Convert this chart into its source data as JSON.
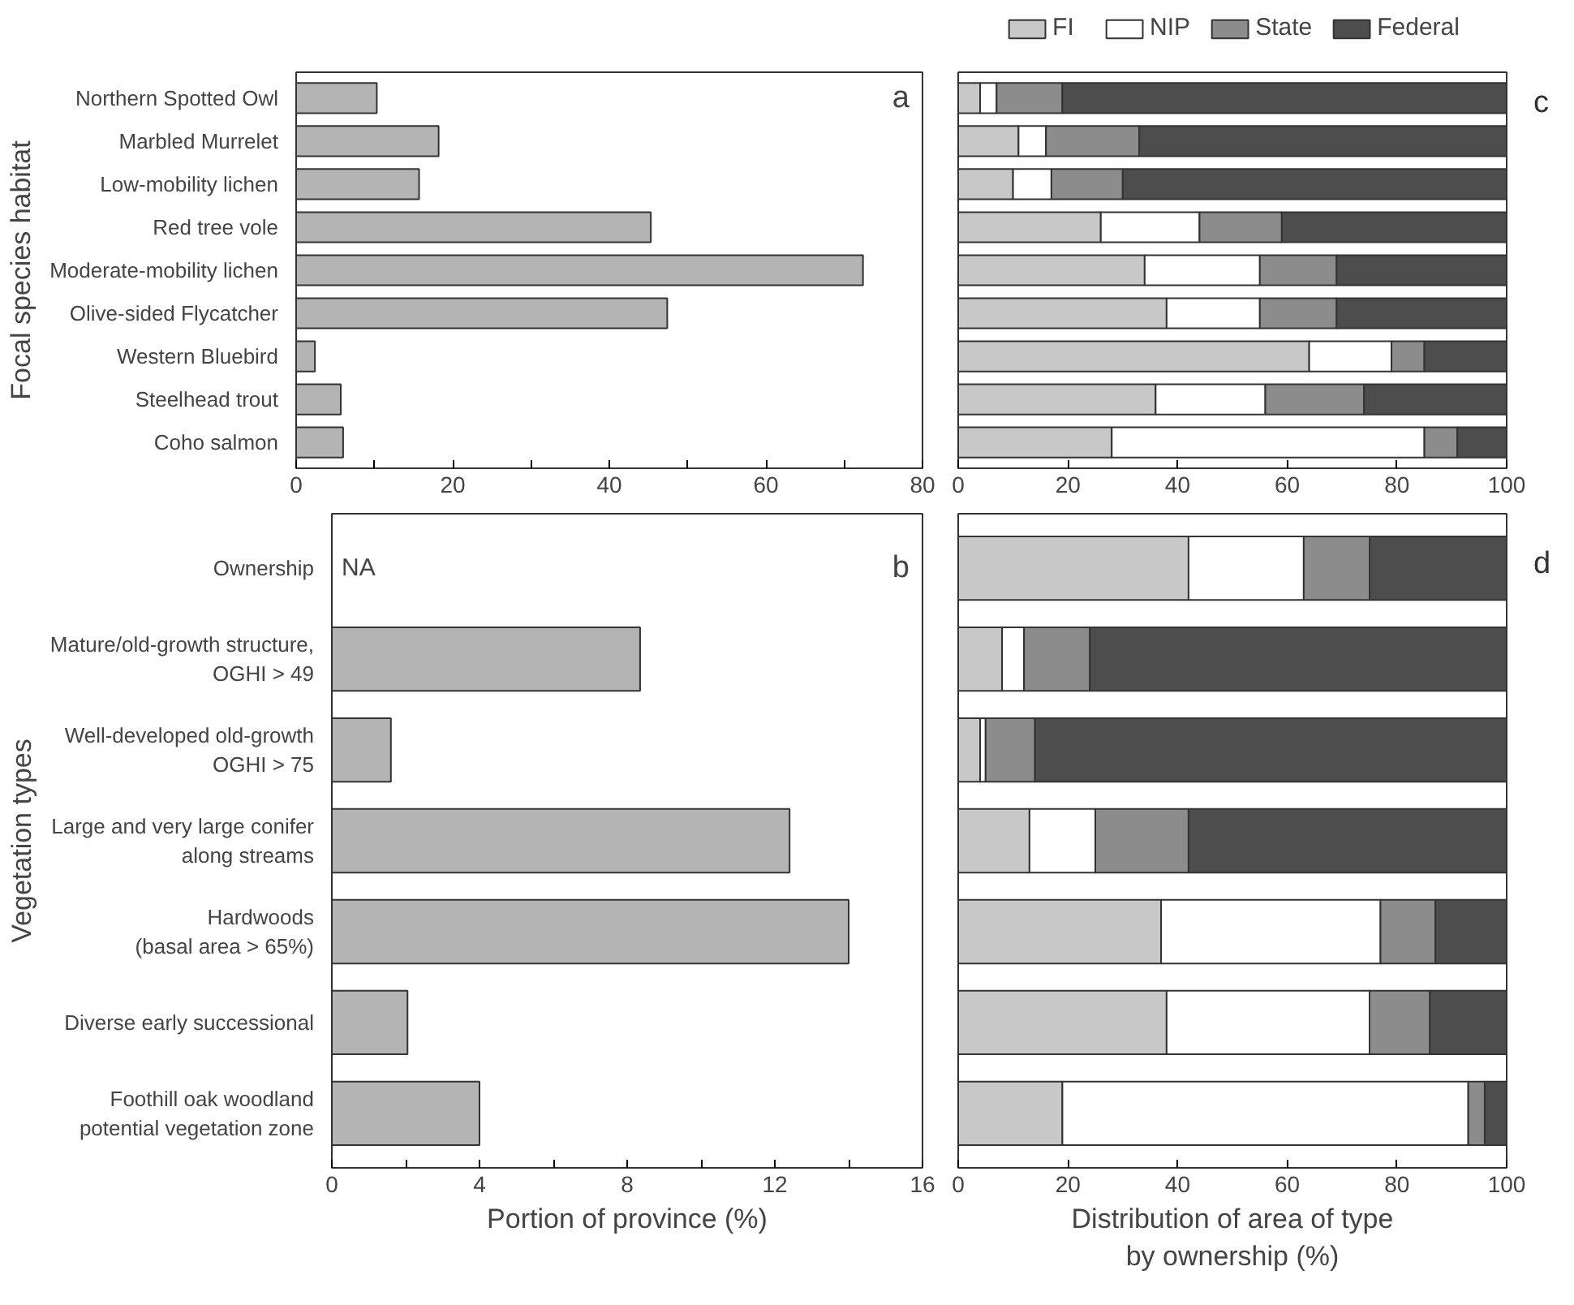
{
  "chart_data": [
    {
      "type": "bar",
      "orientation": "horizontal",
      "ylabel": "Focal species habitat",
      "categories": [
        "Northern Spotted Owl",
        "Marbled Murrelet",
        "Low-mobility lichen",
        "Red tree vole",
        "Moderate-mobility lichen",
        "Olive-sided Flycatcher",
        "Western Bluebird",
        "Steelhead trout",
        "Coho salmon"
      ],
      "series": [
        {
          "color": "#b4b4b4",
          "values": [
            10.3,
            18.2,
            15.7,
            45.3,
            72.4,
            47.4,
            2.4,
            5.7,
            6.0
          ]
        }
      ],
      "xlim": [
        0,
        80
      ],
      "xticks": [
        0,
        {
          "value": 10,
          "label": null
        },
        20,
        {
          "value": 30,
          "label": null
        },
        40,
        {
          "value": 50,
          "label": null
        },
        60,
        {
          "value": 70,
          "label": null
        },
        80
      ],
      "annotations": [
        "a"
      ]
    },
    {
      "type": "bar",
      "orientation": "horizontal",
      "stacked": true,
      "categories": [
        "Northern Spotted Owl",
        "Marbled Murrelet",
        "Low-mobility lichen",
        "Red tree vole",
        "Moderate-mobility lichen",
        "Olive-sided Flycatcher",
        "Western Bluebird",
        "Steelhead trout",
        "Coho salmon"
      ],
      "series": [
        {
          "name": "FI",
          "color": "#c8c8c8",
          "values": [
            4,
            11,
            10,
            26,
            34,
            38,
            64,
            36,
            28
          ]
        },
        {
          "name": "NIP",
          "color": "#ffffff",
          "values": [
            3,
            5,
            7,
            18,
            21,
            17,
            15,
            20,
            57
          ]
        },
        {
          "name": "State",
          "color": "#8c8c8c",
          "values": [
            12,
            17,
            13,
            15,
            14,
            14,
            6,
            18,
            6
          ]
        },
        {
          "name": "Federal",
          "color": "#4d4d4d",
          "values": [
            81,
            67,
            70,
            41,
            31,
            31,
            15,
            26,
            9
          ]
        }
      ],
      "xlim": [
        0,
        100
      ],
      "xticks": [
        0,
        20,
        40,
        60,
        80,
        100
      ],
      "tick_labels": "x",
      "legend": "top",
      "annotations": [
        "c"
      ]
    },
    {
      "type": "bar",
      "orientation": "horizontal",
      "ylabel": "Vegetation types",
      "xlabel": "Portion of province (%)",
      "categories": [
        "Ownership",
        "Mature/old-growth structure,\nOGHI > 49",
        "Well-developed old-growth\nOGHI > 75",
        "Large and very large conifer\nalong streams",
        "Hardwoods\n(basal area > 65%)",
        "Diverse early successional",
        "Foothill oak woodland\npotential vegetation zone"
      ],
      "series": [
        {
          "color": "#b4b4b4",
          "values": [
            null,
            8.35,
            1.6,
            12.4,
            14.0,
            2.05,
            4.0
          ]
        }
      ],
      "xlim": [
        0,
        16
      ],
      "xticks": [
        0,
        {
          "value": 2,
          "label": null
        },
        4,
        {
          "value": 6,
          "label": null
        },
        8,
        {
          "value": 10,
          "label": null
        },
        12,
        {
          "value": 14,
          "label": null
        },
        16
      ],
      "annotations": [
        "b",
        "NA"
      ]
    },
    {
      "type": "bar",
      "orientation": "horizontal",
      "stacked": true,
      "xlabel": "Distribution of area of type by ownership (%)",
      "categories": [
        "Ownership",
        "Mature/old-growth structure,\nOGHI > 49",
        "Well-developed old-growth\nOGHI > 75",
        "Large and very large conifer\nalong streams",
        "Hardwoods\n(basal area > 65%)",
        "Diverse early successional",
        "Foothill oak woodland\npotential vegetation zone"
      ],
      "series": [
        {
          "color": "#c8c8c8",
          "values": [
            42,
            8,
            4,
            13,
            37,
            38,
            19
          ]
        },
        {
          "color": "#ffffff",
          "values": [
            21,
            4,
            1,
            12,
            40,
            37,
            74
          ]
        },
        {
          "color": "#8c8c8c",
          "values": [
            12,
            12,
            9,
            17,
            10,
            11,
            3
          ]
        },
        {
          "color": "#4d4d4d",
          "values": [
            25,
            76,
            86,
            58,
            13,
            14,
            4
          ]
        }
      ],
      "xlim": [
        0,
        100
      ],
      "xticks": [
        0,
        20,
        40,
        60,
        80,
        100
      ],
      "tick_labels": "x",
      "annotations": [
        "d"
      ]
    }
  ]
}
